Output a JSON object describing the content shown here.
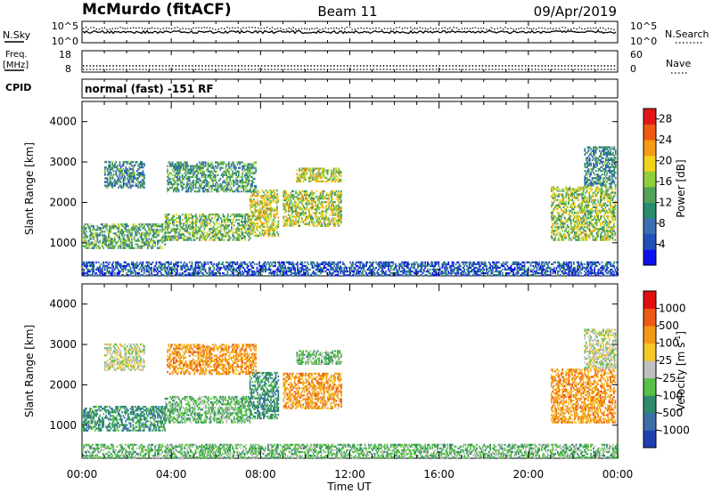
{
  "header": {
    "station": "McMurdo (fitACF)",
    "beam": "Beam 11",
    "date": "09/Apr/2019"
  },
  "top_panels": {
    "nsky_label": "N.Sky",
    "nsky_ticks": [
      "10^5",
      "10^0"
    ],
    "nsearch_label": "N.Search",
    "nsearch_ticks": [
      "10^5",
      "10^0"
    ],
    "freq_label_1": "Freq.",
    "freq_label_2": "[MHz]",
    "freq_ticks": [
      "18",
      "8"
    ],
    "nave_label": "Nave",
    "nave_ticks": [
      "60",
      "0"
    ],
    "cpid_label": "CPID",
    "cpid_text": "normal (fast) -151 RF"
  },
  "chart_data": [
    {
      "type": "heatmap",
      "name": "power",
      "ylabel": "Slant Range [km]",
      "yticks": [
        "4000",
        "3000",
        "2000",
        "1000"
      ],
      "ylim": [
        180,
        4500
      ],
      "xlim": [
        0,
        24
      ],
      "colorbar": {
        "label": "Power [dB]",
        "ticks": [
          "28",
          "24",
          "20",
          "16",
          "12",
          "8",
          "4"
        ],
        "range": [
          0,
          30
        ],
        "colors": [
          "#1010ee",
          "#2050b8",
          "#3a6fb0",
          "#2a8c6c",
          "#54a25a",
          "#8fcf3c",
          "#f2d21a",
          "#f49a14",
          "#ee5a12",
          "#e01818"
        ]
      },
      "echo_regions": [
        {
          "t0": 0.0,
          "t1": 3.7,
          "r0": 850,
          "r1": 1450,
          "level": 13
        },
        {
          "t0": 3.7,
          "t1": 7.5,
          "r0": 1050,
          "r1": 1700,
          "level": 14
        },
        {
          "t0": 7.5,
          "t1": 8.8,
          "r0": 1150,
          "r1": 2300,
          "level": 18
        },
        {
          "t0": 9.0,
          "t1": 11.6,
          "r0": 1400,
          "r1": 2300,
          "level": 17
        },
        {
          "t0": 1.0,
          "t1": 2.8,
          "r0": 2350,
          "r1": 3000,
          "level": 10
        },
        {
          "t0": 3.8,
          "t1": 7.8,
          "r0": 2250,
          "r1": 3000,
          "level": 12
        },
        {
          "t0": 9.6,
          "t1": 11.6,
          "r0": 2500,
          "r1": 2850,
          "level": 18
        },
        {
          "t0": 21.0,
          "t1": 23.9,
          "r0": 1050,
          "r1": 2400,
          "level": 16
        },
        {
          "t0": 22.5,
          "t1": 23.9,
          "r0": 2400,
          "r1": 3350,
          "level": 10
        },
        {
          "t0": 0.0,
          "t1": 24.0,
          "r0": 180,
          "r1": 500,
          "level": 6
        }
      ]
    },
    {
      "type": "heatmap",
      "name": "velocity",
      "ylabel": "Slant Range [km]",
      "yticks": [
        "4000",
        "3000",
        "2000",
        "1000"
      ],
      "ylim": [
        180,
        4500
      ],
      "xlim": [
        0,
        24
      ],
      "xticks": [
        "00:00",
        "04:00",
        "08:00",
        "12:00",
        "16:00",
        "20:00",
        "00:00"
      ],
      "xlabel": "Time UT",
      "colorbar": {
        "label": "Velocity [m s",
        "label_sup": "-1",
        "label_end": "]",
        "ticks": [
          "1000",
          "500",
          "100",
          "25",
          "-25",
          "-100",
          "-500",
          "-1000"
        ],
        "colors": [
          "#2040b0",
          "#3a6fa8",
          "#2f8a6c",
          "#58c046",
          "#c0c0c0",
          "#f6c82a",
          "#f29a18",
          "#ec5a16",
          "#e01010"
        ]
      },
      "echo_regions": [
        {
          "t0": 0.0,
          "t1": 3.7,
          "r0": 850,
          "r1": 1450,
          "level": 2
        },
        {
          "t0": 3.7,
          "t1": 7.5,
          "r0": 1050,
          "r1": 1700,
          "level": 3
        },
        {
          "t0": 7.5,
          "t1": 8.8,
          "r0": 1150,
          "r1": 2300,
          "level": 2
        },
        {
          "t0": 9.0,
          "t1": 11.6,
          "r0": 1400,
          "r1": 2300,
          "level": 6
        },
        {
          "t0": 1.0,
          "t1": 2.8,
          "r0": 2350,
          "r1": 3000,
          "level": 4
        },
        {
          "t0": 3.8,
          "t1": 7.8,
          "r0": 2250,
          "r1": 3000,
          "level": 6
        },
        {
          "t0": 9.6,
          "t1": 11.6,
          "r0": 2500,
          "r1": 2850,
          "level": 3
        },
        {
          "t0": 21.0,
          "t1": 23.9,
          "r0": 1050,
          "r1": 2400,
          "level": 6
        },
        {
          "t0": 22.5,
          "t1": 23.9,
          "r0": 2400,
          "r1": 3350,
          "level": 4
        },
        {
          "t0": 0.0,
          "t1": 24.0,
          "r0": 180,
          "r1": 500,
          "level": 3
        }
      ]
    }
  ]
}
